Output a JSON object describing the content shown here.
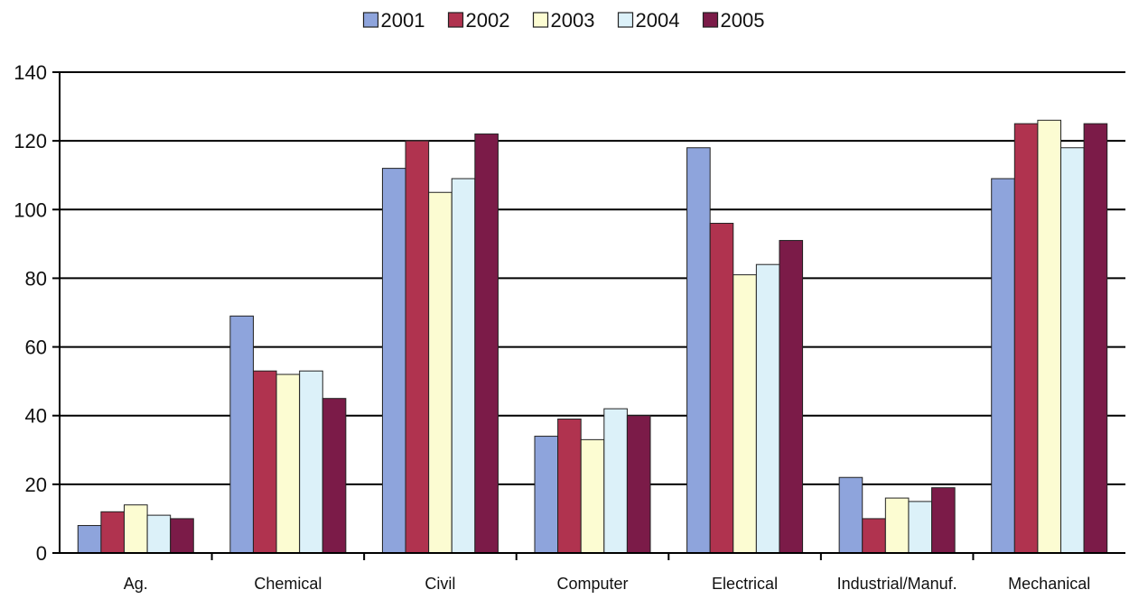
{
  "chart_data": {
    "type": "bar",
    "title": "",
    "xlabel": "",
    "ylabel": "",
    "ylim": [
      0,
      140
    ],
    "yticks": [
      0,
      20,
      40,
      60,
      80,
      100,
      120,
      140
    ],
    "grid": true,
    "legend_position": "top",
    "categories": [
      "Ag.",
      "Chemical",
      "Civil",
      "Computer",
      "Electrical",
      "Industrial/Manuf.",
      "Mechanical"
    ],
    "series": [
      {
        "name": "2001",
        "color": "#8ea4dc",
        "values": [
          8,
          69,
          112,
          34,
          118,
          22,
          109
        ]
      },
      {
        "name": "2002",
        "color": "#b0334f",
        "values": [
          12,
          53,
          120,
          39,
          96,
          10,
          125
        ]
      },
      {
        "name": "2003",
        "color": "#fcfcd2",
        "values": [
          14,
          52,
          105,
          33,
          81,
          16,
          126
        ]
      },
      {
        "name": "2004",
        "color": "#dcf1f9",
        "values": [
          11,
          53,
          109,
          42,
          84,
          15,
          118
        ]
      },
      {
        "name": "2005",
        "color": "#7b1b48",
        "values": [
          10,
          45,
          122,
          40,
          91,
          19,
          125
        ]
      }
    ]
  }
}
